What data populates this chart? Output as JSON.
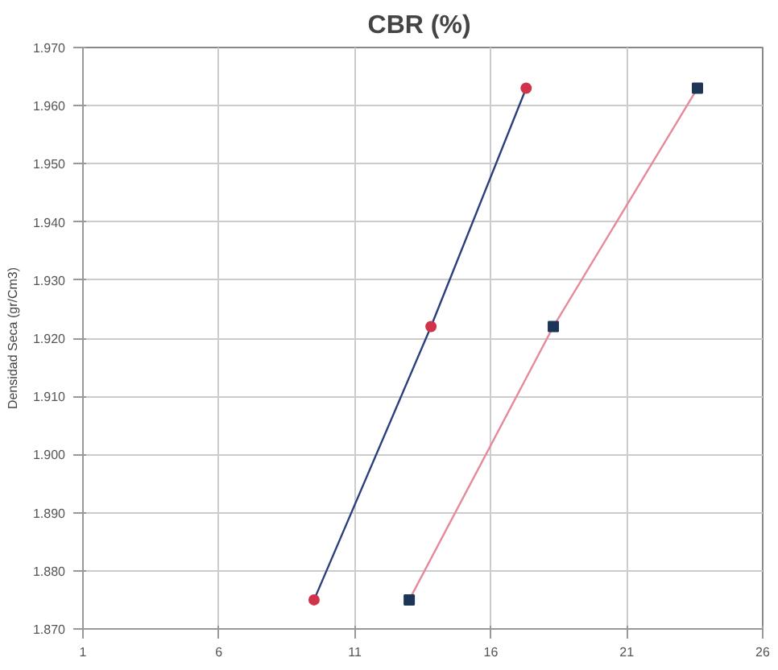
{
  "chart_data": {
    "type": "line",
    "title": "CBR  (%)",
    "ylabel": "Densidad Seca (gr/Cm3)",
    "xlim": [
      1,
      26
    ],
    "xticks": [
      1,
      6,
      11,
      16,
      21,
      26
    ],
    "ylim": [
      1.87,
      1.97
    ],
    "yticks": [
      {
        "value": 1.87,
        "label": "1.870"
      },
      {
        "value": 1.88,
        "label": "1.880"
      },
      {
        "value": 1.89,
        "label": "1.890"
      },
      {
        "value": 1.9,
        "label": "1.900"
      },
      {
        "value": 1.91,
        "label": "1.910"
      },
      {
        "value": 1.92,
        "label": "1.920"
      },
      {
        "value": 1.93,
        "label": "1.930"
      },
      {
        "value": 1.94,
        "label": "1.940"
      },
      {
        "value": 1.95,
        "label": "1.950"
      },
      {
        "value": 1.96,
        "label": "1.960"
      },
      {
        "value": 1.97,
        "label": "1.970"
      }
    ],
    "grid": true,
    "series": [
      {
        "marker": "none",
        "color": "#2b3f7a",
        "x": [
          9.5,
          13.8,
          17.3
        ],
        "values": [
          1.875,
          1.922,
          1.963
        ]
      },
      {
        "type": "scatter",
        "marker": "circle",
        "color": "#d0344a",
        "x": [
          9.5,
          13.8,
          17.3
        ],
        "values": [
          1.875,
          1.922,
          1.963
        ]
      },
      {
        "marker": "none",
        "color": "#e58a9a",
        "x": [
          13.0,
          18.3,
          23.6
        ],
        "values": [
          1.875,
          1.922,
          1.963
        ]
      },
      {
        "type": "scatter",
        "marker": "square",
        "color": "#1d3557",
        "x": [
          13.0,
          18.3,
          23.6
        ],
        "values": [
          1.875,
          1.922,
          1.963
        ]
      }
    ]
  }
}
